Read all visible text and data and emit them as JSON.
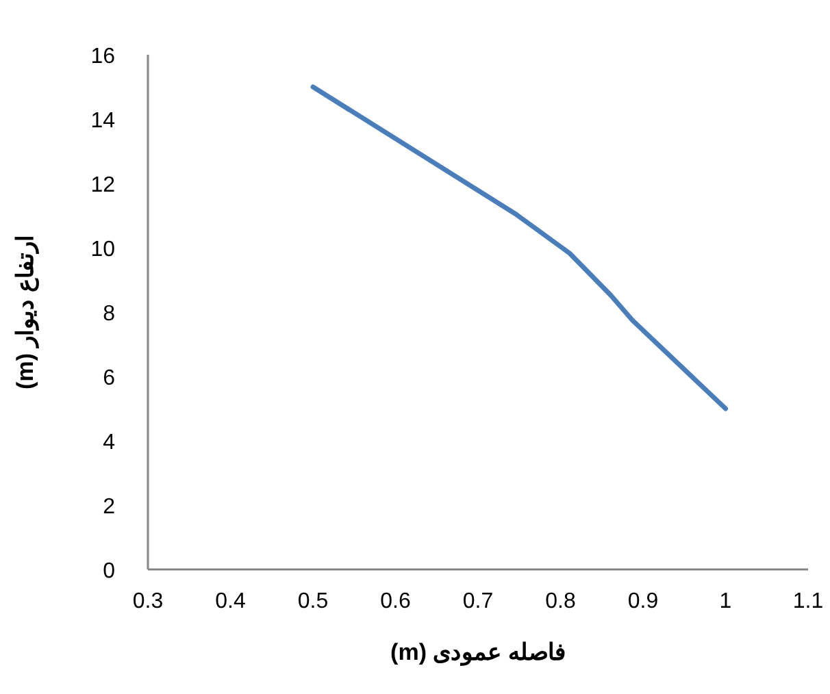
{
  "chart_data": {
    "type": "line",
    "xlabel": "فاصله عمودی (m)",
    "ylabel": "ارتفاع دیوار (m)",
    "xlim": [
      0.3,
      1.1
    ],
    "xticks": [
      0.3,
      0.4,
      0.5,
      0.6,
      0.7,
      0.8,
      0.9,
      1,
      1.1
    ],
    "ylim": [
      0,
      16
    ],
    "yticks": [
      0,
      2,
      4,
      6,
      8,
      10,
      12,
      14,
      16
    ],
    "grid": false,
    "marker": "none",
    "line_style": "solid",
    "series": [
      {
        "color": "#4a7ebb",
        "x": [
          0.5,
          0.745,
          0.811,
          0.861,
          0.887,
          1
        ],
        "values": [
          15,
          11.06,
          9.83,
          8.52,
          7.75,
          5
        ]
      }
    ]
  }
}
